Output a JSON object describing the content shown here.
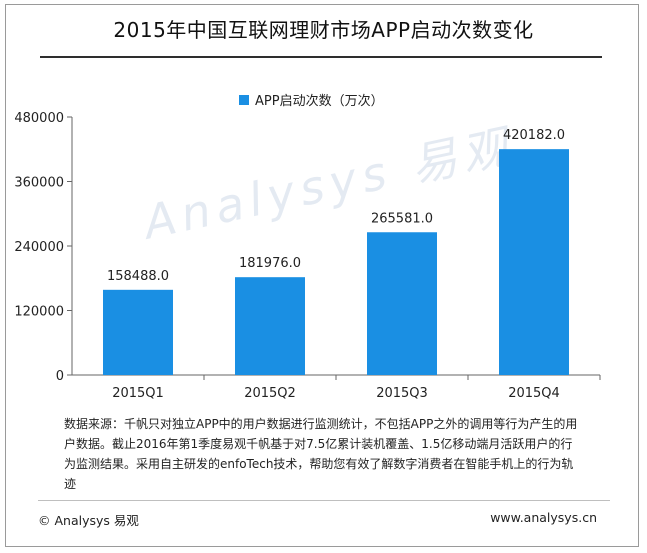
{
  "title": "2015年中国互联网理财市场APP启动次数变化",
  "legend_label": "APP启动次数（万次）",
  "colors": {
    "bar": "#1a8fe3",
    "axis": "#666666",
    "title_rule": "#2e2e2e"
  },
  "chart_data": {
    "type": "bar",
    "title": "2015年中国互联网理财市场APP启动次数变化",
    "categories": [
      "2015Q1",
      "2015Q2",
      "2015Q3",
      "2015Q4"
    ],
    "series": [
      {
        "name": "APP启动次数（万次）",
        "values": [
          158488.0,
          181976.0,
          265581.0,
          420182.0
        ]
      }
    ],
    "value_labels": [
      "158488.0",
      "181976.0",
      "265581.0",
      "420182.0"
    ],
    "ylim": [
      0,
      480000
    ],
    "yticks": [
      "0",
      "120000",
      "240000",
      "360000",
      "480000"
    ],
    "xlabel": "",
    "ylabel": "",
    "grid": false,
    "legend_position": "top"
  },
  "watermark": "Analysys 易观",
  "note": "数据来源：千帆只对独立APP中的用户数据进行监测统计，不包括APP之外的调用等行为产生的用户数据。截止2016年第1季度易观千帆基于对7.5亿累计装机覆盖、1.5亿移动端月活跃用户的行为监测结果。采用自主研发的enfoTech技术，帮助您有效了解数字消费者在智能手机上的行为轨迹",
  "footer": {
    "left": "© Analysys 易观",
    "right": "www.analysys.cn"
  }
}
